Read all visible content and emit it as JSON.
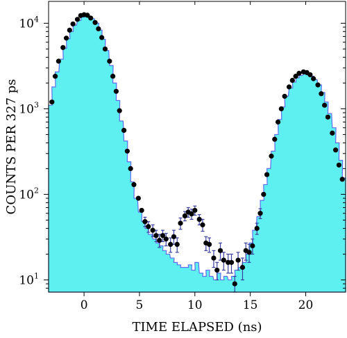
{
  "chart_data": {
    "type": "scatter",
    "title": "",
    "xlabel": "TIME ELAPSED (ns)",
    "ylabel": "COUNTS PER 327 ps",
    "xlim": [
      -3.2,
      23.6
    ],
    "ylim": [
      7.2,
      18000
    ],
    "yscale": "log",
    "grid": false,
    "x_ticks": [
      0,
      5,
      10,
      15,
      20
    ],
    "x_tick_labels": [
      "0",
      "5",
      "10",
      "15",
      "20"
    ],
    "y_ticks": [
      10,
      100,
      1000,
      10000
    ],
    "y_tick_labels": [
      {
        "base": "10",
        "exp": "1"
      },
      {
        "base": "10",
        "exp": "2"
      },
      {
        "base": "10",
        "exp": "3"
      },
      {
        "base": "10",
        "exp": "4"
      }
    ],
    "colors": {
      "histogram_fill": "#5ef0f0",
      "histogram_edge": "#5b6cf0",
      "points": "#000000",
      "error_bars": "#3a3fa0"
    },
    "series": [
      {
        "kind": "step-histogram",
        "bin_width": 0.327,
        "points": [
          [
            -3.2,
            1100
          ],
          [
            -2.9,
            1800
          ],
          [
            -2.6,
            2700
          ],
          [
            -2.2,
            3800
          ],
          [
            -1.9,
            5100
          ],
          [
            -1.6,
            6600
          ],
          [
            -1.3,
            8000
          ],
          [
            -1.0,
            9500
          ],
          [
            -0.6,
            10800
          ],
          [
            -0.3,
            11800
          ],
          [
            0.0,
            12200
          ],
          [
            0.3,
            12000
          ],
          [
            0.6,
            11300
          ],
          [
            1.0,
            10000
          ],
          [
            1.3,
            8300
          ],
          [
            1.6,
            6500
          ],
          [
            1.9,
            4800
          ],
          [
            2.3,
            3200
          ],
          [
            2.6,
            2000
          ],
          [
            2.9,
            1250
          ],
          [
            3.2,
            720
          ],
          [
            3.6,
            420
          ],
          [
            3.9,
            240
          ],
          [
            4.2,
            140
          ],
          [
            4.5,
            90
          ],
          [
            4.9,
            62
          ],
          [
            5.2,
            48
          ],
          [
            5.5,
            40
          ],
          [
            5.8,
            34
          ],
          [
            6.2,
            30
          ],
          [
            6.5,
            27
          ],
          [
            6.8,
            25
          ],
          [
            7.1,
            22
          ],
          [
            7.4,
            20
          ],
          [
            7.8,
            18
          ],
          [
            8.1,
            16
          ],
          [
            8.4,
            15
          ],
          [
            8.7,
            14
          ],
          [
            9.1,
            14
          ],
          [
            9.4,
            15
          ],
          [
            9.7,
            13
          ],
          [
            10.0,
            16
          ],
          [
            10.4,
            12
          ],
          [
            10.7,
            11
          ],
          [
            11.0,
            13
          ],
          [
            11.3,
            11
          ],
          [
            11.7,
            10
          ],
          [
            12.0,
            12
          ],
          [
            12.3,
            10
          ],
          [
            12.6,
            11
          ],
          [
            13.0,
            10
          ],
          [
            13.3,
            11
          ],
          [
            13.6,
            13
          ],
          [
            13.9,
            14
          ],
          [
            14.3,
            16
          ],
          [
            14.6,
            20
          ],
          [
            14.9,
            27
          ],
          [
            15.2,
            38
          ],
          [
            15.6,
            55
          ],
          [
            15.9,
            85
          ],
          [
            16.2,
            130
          ],
          [
            16.5,
            200
          ],
          [
            16.9,
            320
          ],
          [
            17.2,
            500
          ],
          [
            17.5,
            750
          ],
          [
            17.8,
            1050
          ],
          [
            18.1,
            1400
          ],
          [
            18.5,
            1750
          ],
          [
            18.8,
            2050
          ],
          [
            19.1,
            2300
          ],
          [
            19.4,
            2450
          ],
          [
            19.8,
            2550
          ],
          [
            20.1,
            2500
          ],
          [
            20.4,
            2400
          ],
          [
            20.7,
            2200
          ],
          [
            21.1,
            1900
          ],
          [
            21.4,
            1550
          ],
          [
            21.7,
            1200
          ],
          [
            22.0,
            880
          ],
          [
            22.4,
            600
          ],
          [
            22.7,
            400
          ],
          [
            23.0,
            250
          ],
          [
            23.3,
            155
          ]
        ]
      },
      {
        "kind": "data-points-with-error-bars",
        "points": [
          [
            -2.9,
            1200,
            0
          ],
          [
            -2.6,
            2400,
            0
          ],
          [
            -2.3,
            3600,
            0
          ],
          [
            -1.9,
            5200,
            0
          ],
          [
            -1.6,
            6700,
            0
          ],
          [
            -1.3,
            8300,
            0
          ],
          [
            -1.0,
            9800,
            0
          ],
          [
            -0.6,
            11100,
            0
          ],
          [
            -0.3,
            12300,
            0
          ],
          [
            0.0,
            12600,
            0
          ],
          [
            0.3,
            12400,
            0
          ],
          [
            0.6,
            11500,
            0
          ],
          [
            1.0,
            10200,
            0
          ],
          [
            1.3,
            8600,
            0
          ],
          [
            1.6,
            6800,
            0
          ],
          [
            1.9,
            5000,
            0
          ],
          [
            2.3,
            3600,
            0
          ],
          [
            2.6,
            2400,
            0
          ],
          [
            2.9,
            1600,
            0
          ],
          [
            3.2,
            950,
            0
          ],
          [
            3.6,
            560,
            0
          ],
          [
            3.9,
            320,
            0
          ],
          [
            4.2,
            200,
            0
          ],
          [
            4.5,
            130,
            0
          ],
          [
            4.9,
            90,
            0
          ],
          [
            5.2,
            65,
            0
          ],
          [
            5.5,
            48,
            6
          ],
          [
            5.8,
            42,
            6
          ],
          [
            6.2,
            38,
            6
          ],
          [
            6.5,
            33,
            5
          ],
          [
            6.8,
            29,
            5
          ],
          [
            7.1,
            33,
            5
          ],
          [
            7.4,
            30,
            5
          ],
          [
            7.8,
            26,
            5
          ],
          [
            8.1,
            32,
            6
          ],
          [
            8.4,
            26,
            5
          ],
          [
            8.7,
            46,
            7
          ],
          [
            9.1,
            56,
            7
          ],
          [
            9.4,
            62,
            8
          ],
          [
            9.7,
            59,
            8
          ],
          [
            10.0,
            65,
            8
          ],
          [
            10.4,
            51,
            7
          ],
          [
            10.7,
            44,
            7
          ],
          [
            11.0,
            27,
            5
          ],
          [
            11.3,
            26,
            5
          ],
          [
            11.7,
            18,
            4
          ],
          [
            12.0,
            13,
            3
          ],
          [
            12.3,
            22,
            5
          ],
          [
            12.6,
            17,
            4
          ],
          [
            13.0,
            16,
            4
          ],
          [
            13.3,
            16,
            4
          ],
          [
            13.6,
            9,
            2
          ],
          [
            13.9,
            17,
            4
          ],
          [
            14.3,
            14,
            4
          ],
          [
            14.6,
            22,
            5
          ],
          [
            14.9,
            21,
            5
          ],
          [
            15.2,
            25,
            5
          ],
          [
            15.6,
            40,
            6
          ],
          [
            15.9,
            60,
            8
          ],
          [
            16.2,
            100,
            0
          ],
          [
            16.5,
            170,
            0
          ],
          [
            16.9,
            280,
            0
          ],
          [
            17.2,
            440,
            0
          ],
          [
            17.5,
            700,
            0
          ],
          [
            17.8,
            1000,
            0
          ],
          [
            18.1,
            1400,
            0
          ],
          [
            18.5,
            1800,
            0
          ],
          [
            18.8,
            2150,
            0
          ],
          [
            19.1,
            2400,
            0
          ],
          [
            19.4,
            2600,
            0
          ],
          [
            19.8,
            2700,
            0
          ],
          [
            20.1,
            2650,
            0
          ],
          [
            20.4,
            2500,
            0
          ],
          [
            20.7,
            2250,
            0
          ],
          [
            21.1,
            1900,
            0
          ],
          [
            21.4,
            1500,
            0
          ],
          [
            21.7,
            1100,
            0
          ],
          [
            22.0,
            800,
            0
          ],
          [
            22.4,
            520,
            0
          ],
          [
            22.7,
            330,
            0
          ],
          [
            23.0,
            220,
            0
          ],
          [
            23.3,
            150,
            0
          ]
        ]
      }
    ]
  }
}
